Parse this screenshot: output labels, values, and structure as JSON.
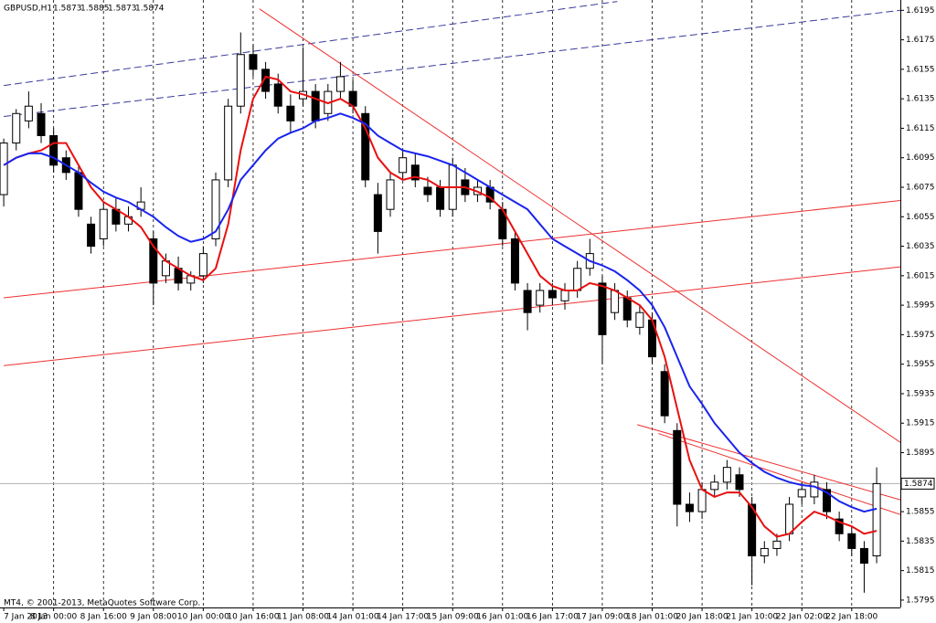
{
  "chart_data": {
    "type": "candlestick",
    "symbol": "GBPUSD,H1",
    "quote": [
      1.5873,
      1.5885,
      1.5873,
      1.5874
    ],
    "footer": "MT4, © 2001-2013, MetaQuotes Software Corp.",
    "current_price": 1.5874,
    "xlim": [
      -0.3,
      71.9
    ],
    "ylim": [
      1.579,
      1.6202
    ],
    "xticks": [
      {
        "value": 0,
        "label": "7 Jan 2013"
      },
      {
        "value": 4,
        "label": "8 Jan 00:00"
      },
      {
        "value": 8,
        "label": "8 Jan 16:00"
      },
      {
        "value": 12,
        "label": "9 Jan 08:00"
      },
      {
        "value": 16,
        "label": "10 Jan 00:00"
      },
      {
        "value": 20,
        "label": "10 Jan 16:00"
      },
      {
        "value": 24,
        "label": "11 Jan 08:00"
      },
      {
        "value": 28,
        "label": "14 Jan 01:00"
      },
      {
        "value": 32,
        "label": "14 Jan 17:00"
      },
      {
        "value": 36,
        "label": "15 Jan 09:00"
      },
      {
        "value": 40,
        "label": "16 Jan 01:00"
      },
      {
        "value": 44,
        "label": "16 Jan 17:00"
      },
      {
        "value": 48,
        "label": "17 Jan 09:00"
      },
      {
        "value": 52,
        "label": "18 Jan 01:00"
      },
      {
        "value": 56,
        "label": "20 Jan 18:00"
      },
      {
        "value": 60,
        "label": "21 Jan 10:00"
      },
      {
        "value": 64,
        "label": "22 Jan 02:00"
      },
      {
        "value": 68,
        "label": "22 Jan 18:00"
      }
    ],
    "yticks": [
      1.5795,
      1.5815,
      1.5835,
      1.5855,
      1.5875,
      1.5895,
      1.5915,
      1.5935,
      1.5955,
      1.5975,
      1.5995,
      1.6015,
      1.6035,
      1.6055,
      1.6075,
      1.6095,
      1.6115,
      1.6135,
      1.6155,
      1.6175,
      1.6195
    ],
    "open": [
      1.607,
      1.6105,
      1.612,
      1.6125,
      1.611,
      1.6095,
      1.6085,
      1.605,
      1.604,
      1.606,
      1.605,
      1.606,
      1.604,
      1.6015,
      1.602,
      1.601,
      1.6015,
      1.604,
      1.608,
      1.613,
      1.6165,
      1.6155,
      1.6145,
      1.613,
      1.6135,
      1.614,
      1.6125,
      1.614,
      1.614,
      1.6125,
      1.607,
      1.606,
      1.6085,
      1.609,
      1.6075,
      1.6075,
      1.606,
      1.608,
      1.607,
      1.6075,
      1.606,
      1.604,
      1.6005,
      1.5995,
      1.6005,
      1.5998,
      1.6005,
      1.602,
      1.601,
      1.599,
      1.6,
      1.598,
      1.5985,
      1.595,
      1.591,
      1.586,
      1.5855,
      1.587,
      1.5875,
      1.588,
      1.586,
      1.5825,
      1.583,
      1.584,
      1.5865,
      1.5865,
      1.587,
      1.585,
      1.584,
      1.583,
      1.5825
    ],
    "high": [
      1.6108,
      1.6128,
      1.614,
      1.6132,
      1.6115,
      1.61,
      1.609,
      1.6055,
      1.6065,
      1.6068,
      1.6062,
      1.6075,
      1.6045,
      1.603,
      1.6028,
      1.6018,
      1.6035,
      1.6085,
      1.6135,
      1.618,
      1.6172,
      1.616,
      1.6152,
      1.6138,
      1.617,
      1.6145,
      1.6145,
      1.616,
      1.6148,
      1.613,
      1.6078,
      1.6085,
      1.61,
      1.6098,
      1.6082,
      1.608,
      1.6095,
      1.6088,
      1.608,
      1.608,
      1.6065,
      1.6045,
      1.601,
      1.601,
      1.601,
      1.601,
      1.6025,
      1.604,
      1.6015,
      1.601,
      1.6005,
      1.5995,
      1.599,
      1.5955,
      1.5915,
      1.5868,
      1.5875,
      1.588,
      1.589,
      1.5885,
      1.5865,
      1.5835,
      1.584,
      1.5865,
      1.5875,
      1.588,
      1.5875,
      1.5855,
      1.5845,
      1.5835,
      1.5885
    ],
    "low": [
      1.6062,
      1.61,
      1.6115,
      1.6105,
      1.6085,
      1.608,
      1.6055,
      1.603,
      1.6035,
      1.6045,
      1.6045,
      1.6055,
      1.5995,
      1.601,
      1.6005,
      1.6005,
      1.601,
      1.6035,
      1.6075,
      1.6125,
      1.615,
      1.6135,
      1.6125,
      1.6112,
      1.613,
      1.6115,
      1.612,
      1.6135,
      1.6125,
      1.6075,
      1.603,
      1.6055,
      1.608,
      1.6075,
      1.6065,
      1.6055,
      1.6055,
      1.6065,
      1.6065,
      1.606,
      1.6035,
      1.6005,
      1.5978,
      1.599,
      1.5995,
      1.5992,
      1.6,
      1.6015,
      1.5955,
      1.5985,
      1.598,
      1.5975,
      1.5955,
      1.5915,
      1.5845,
      1.5848,
      1.585,
      1.5865,
      1.587,
      1.5865,
      1.5805,
      1.582,
      1.5825,
      1.5835,
      1.586,
      1.586,
      1.585,
      1.5835,
      1.5825,
      1.58,
      1.582
    ],
    "close": [
      1.6105,
      1.6125,
      1.613,
      1.611,
      1.609,
      1.6085,
      1.606,
      1.6035,
      1.606,
      1.605,
      1.6055,
      1.6065,
      1.601,
      1.6025,
      1.601,
      1.6015,
      1.603,
      1.608,
      1.613,
      1.6165,
      1.6155,
      1.614,
      1.613,
      1.612,
      1.614,
      1.612,
      1.614,
      1.615,
      1.613,
      1.608,
      1.6045,
      1.608,
      1.6095,
      1.608,
      1.607,
      1.606,
      1.609,
      1.607,
      1.6075,
      1.6065,
      1.604,
      1.601,
      1.599,
      1.6005,
      1.6,
      1.6005,
      1.602,
      1.603,
      1.5975,
      1.6005,
      1.5985,
      1.599,
      1.596,
      1.592,
      1.586,
      1.5855,
      1.587,
      1.5875,
      1.5885,
      1.587,
      1.5825,
      1.583,
      1.5835,
      1.586,
      1.587,
      1.5875,
      1.5855,
      1.584,
      1.583,
      1.582,
      1.5874
    ],
    "series": [
      {
        "color": "#e81010",
        "values": [
          1.609,
          1.6095,
          1.6098,
          1.61,
          1.6105,
          1.6105,
          1.609,
          1.6075,
          1.6065,
          1.606,
          1.6055,
          1.6048,
          1.6035,
          1.6025,
          1.602,
          1.6015,
          1.6012,
          1.602,
          1.605,
          1.61,
          1.6135,
          1.615,
          1.6148,
          1.614,
          1.6138,
          1.6135,
          1.6132,
          1.6135,
          1.613,
          1.6115,
          1.6095,
          1.6085,
          1.608,
          1.6082,
          1.608,
          1.6075,
          1.6075,
          1.6075,
          1.6072,
          1.6068,
          1.606,
          1.6045,
          1.603,
          1.6015,
          1.6008,
          1.6005,
          1.6005,
          1.601,
          1.6008,
          1.6005,
          1.6,
          1.5995,
          1.5985,
          1.596,
          1.5925,
          1.589,
          1.587,
          1.5865,
          1.5868,
          1.5868,
          1.5858,
          1.5845,
          1.5838,
          1.584,
          1.5848,
          1.5855,
          1.5852,
          1.5848,
          1.5845,
          1.584,
          1.5842
        ]
      },
      {
        "color": "#1a24ee",
        "values": [
          1.609,
          1.6095,
          1.6098,
          1.6098,
          1.6095,
          1.609,
          1.6085,
          1.6078,
          1.6072,
          1.6068,
          1.6065,
          1.606,
          1.6055,
          1.6048,
          1.6042,
          1.6038,
          1.604,
          1.6045,
          1.606,
          1.608,
          1.609,
          1.61,
          1.6108,
          1.6112,
          1.6115,
          1.612,
          1.6122,
          1.6125,
          1.6122,
          1.6118,
          1.611,
          1.6105,
          1.61,
          1.6098,
          1.6096,
          1.6093,
          1.609,
          1.6085,
          1.608,
          1.6075,
          1.607,
          1.6065,
          1.606,
          1.605,
          1.604,
          1.6035,
          1.603,
          1.6025,
          1.6022,
          1.6018,
          1.6012,
          1.6005,
          1.5995,
          1.598,
          1.596,
          1.594,
          1.5928,
          1.5915,
          1.5905,
          1.5895,
          1.5888,
          1.5882,
          1.5878,
          1.5875,
          1.5873,
          1.5872,
          1.5868,
          1.5862,
          1.5858,
          1.5855,
          1.5857
        ]
      }
    ],
    "trendlines": [
      {
        "color": "#3a3a9a",
        "dash": true,
        "x": [
          0,
          49.2
        ],
        "y": [
          1.6144,
          1.6201
        ]
      },
      {
        "color": "#3a3a9a",
        "dash": true,
        "x": [
          0,
          71.9
        ],
        "y": [
          1.6123,
          1.6195
        ]
      },
      {
        "color": "#ee3030",
        "dash": false,
        "x": [
          0,
          71.9
        ],
        "y": [
          1.6,
          1.6066
        ]
      },
      {
        "color": "#ee3030",
        "dash": false,
        "x": [
          0,
          71.9
        ],
        "y": [
          1.5954,
          1.6021
        ]
      },
      {
        "color": "#ee3030",
        "dash": false,
        "x": [
          20.5,
          71.9
        ],
        "y": [
          1.6196,
          1.5902
        ]
      },
      {
        "color": "#ee3030",
        "dash": false,
        "x": [
          50.8,
          71.9
        ],
        "y": [
          1.5914,
          1.5863
        ]
      },
      {
        "color": "#ee3030",
        "dash": false,
        "x": [
          52.5,
          71.9
        ],
        "y": [
          1.5908,
          1.5853
        ]
      }
    ]
  }
}
